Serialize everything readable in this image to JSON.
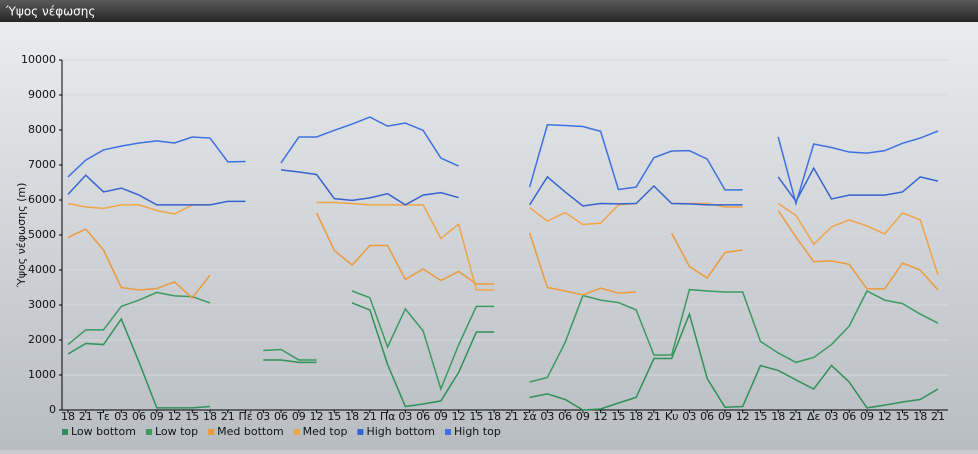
{
  "chart_data": {
    "type": "line",
    "title": "Ύψος νέφωσης",
    "ylabel": "Ύψος νέφωσης (m)",
    "categories": [
      "18",
      "21",
      "Τε",
      "03",
      "06",
      "09",
      "12",
      "15",
      "18",
      "21",
      "Πέ",
      "03",
      "06",
      "09",
      "12",
      "15",
      "18",
      "21",
      "Πα",
      "03",
      "06",
      "09",
      "12",
      "15",
      "18",
      "21",
      "Σά",
      "03",
      "06",
      "09",
      "12",
      "15",
      "18",
      "21",
      "Κυ",
      "03",
      "06",
      "09",
      "12",
      "15",
      "18",
      "21",
      "Δε",
      "03",
      "06",
      "09",
      "12",
      "15",
      "18",
      "21"
    ],
    "ylim": [
      0,
      10000
    ],
    "yticks": [
      0,
      1000,
      2000,
      3000,
      4000,
      5000,
      6000,
      7000,
      8000,
      9000,
      10000
    ],
    "grid": true,
    "series": [
      {
        "name": "Low bottom",
        "color": "#2f9158",
        "values": [
          1600,
          1900,
          1870,
          2600,
          1370,
          60,
          60,
          60,
          100,
          null,
          null,
          1430,
          1430,
          1360,
          1360,
          null,
          3060,
          2860,
          1300,
          100,
          170,
          260,
          1070,
          2230,
          2230,
          null,
          360,
          460,
          300,
          0,
          30,
          200,
          360,
          1470,
          1470,
          2740,
          900,
          80,
          100,
          1270,
          1130,
          860,
          600,
          1270,
          800,
          60,
          140,
          230,
          300,
          600
        ]
      },
      {
        "name": "Low top",
        "color": "#3a9a60",
        "values": [
          1870,
          2290,
          2290,
          2960,
          3140,
          3360,
          3260,
          3240,
          3060,
          null,
          null,
          1700,
          1730,
          1430,
          1430,
          null,
          3400,
          3210,
          1800,
          2890,
          2260,
          600,
          1860,
          2960,
          2960,
          null,
          800,
          930,
          1930,
          3270,
          3140,
          3070,
          2860,
          1570,
          1570,
          3440,
          3400,
          3370,
          3370,
          1960,
          1630,
          1360,
          1500,
          1870,
          2400,
          3400,
          3140,
          3040,
          2740,
          2480
        ]
      },
      {
        "name": "Med bottom",
        "color": "#ec9a3c",
        "values": [
          4930,
          5170,
          4570,
          3500,
          3430,
          3470,
          3660,
          3200,
          3860,
          null,
          null,
          null,
          null,
          null,
          5630,
          4560,
          4140,
          4700,
          4700,
          3730,
          4030,
          3700,
          3960,
          3600,
          3600,
          null,
          5060,
          3500,
          3400,
          3290,
          3480,
          3340,
          3370,
          null,
          5050,
          4100,
          3770,
          4500,
          4570,
          null,
          5700,
          4940,
          4240,
          4260,
          4160,
          3460,
          3460,
          4200,
          4000,
          3430
        ]
      },
      {
        "name": "Med top",
        "color": "#f0a448",
        "values": [
          5900,
          5800,
          5760,
          5860,
          5860,
          5700,
          5600,
          5860,
          5860,
          null,
          null,
          null,
          null,
          null,
          5930,
          5930,
          5900,
          5860,
          5860,
          5860,
          5860,
          4900,
          5310,
          3430,
          3430,
          null,
          5780,
          5400,
          5640,
          5300,
          5340,
          5860,
          5900,
          null,
          5900,
          5900,
          5900,
          5800,
          5800,
          null,
          5900,
          5560,
          4730,
          5230,
          5430,
          5260,
          5030,
          5630,
          5430,
          3860
        ]
      },
      {
        "name": "High bottom",
        "color": "#3563d0",
        "values": [
          6160,
          6710,
          6230,
          6340,
          6140,
          5860,
          5860,
          5860,
          5860,
          5960,
          5960,
          null,
          6860,
          6800,
          6730,
          6040,
          5990,
          6060,
          6180,
          5860,
          6140,
          6210,
          6070,
          null,
          null,
          null,
          5860,
          6660,
          6230,
          5830,
          5900,
          5890,
          5900,
          6400,
          5900,
          5890,
          5860,
          5860,
          5860,
          null,
          6660,
          5960,
          6910,
          6030,
          6140,
          6140,
          6140,
          6230,
          6660,
          6540
        ]
      },
      {
        "name": "High top",
        "color": "#3d70e0",
        "values": [
          6660,
          7140,
          7430,
          7540,
          7630,
          7690,
          7630,
          7800,
          7770,
          7090,
          7100,
          null,
          7060,
          7800,
          7800,
          7990,
          8170,
          8370,
          8110,
          8200,
          7990,
          7200,
          6970,
          null,
          null,
          null,
          6370,
          8150,
          8130,
          8100,
          7960,
          6300,
          6370,
          7210,
          7400,
          7410,
          7170,
          6290,
          6290,
          null,
          7800,
          5900,
          7600,
          7500,
          7370,
          7340,
          7410,
          7620,
          7770,
          7970
        ]
      }
    ]
  }
}
